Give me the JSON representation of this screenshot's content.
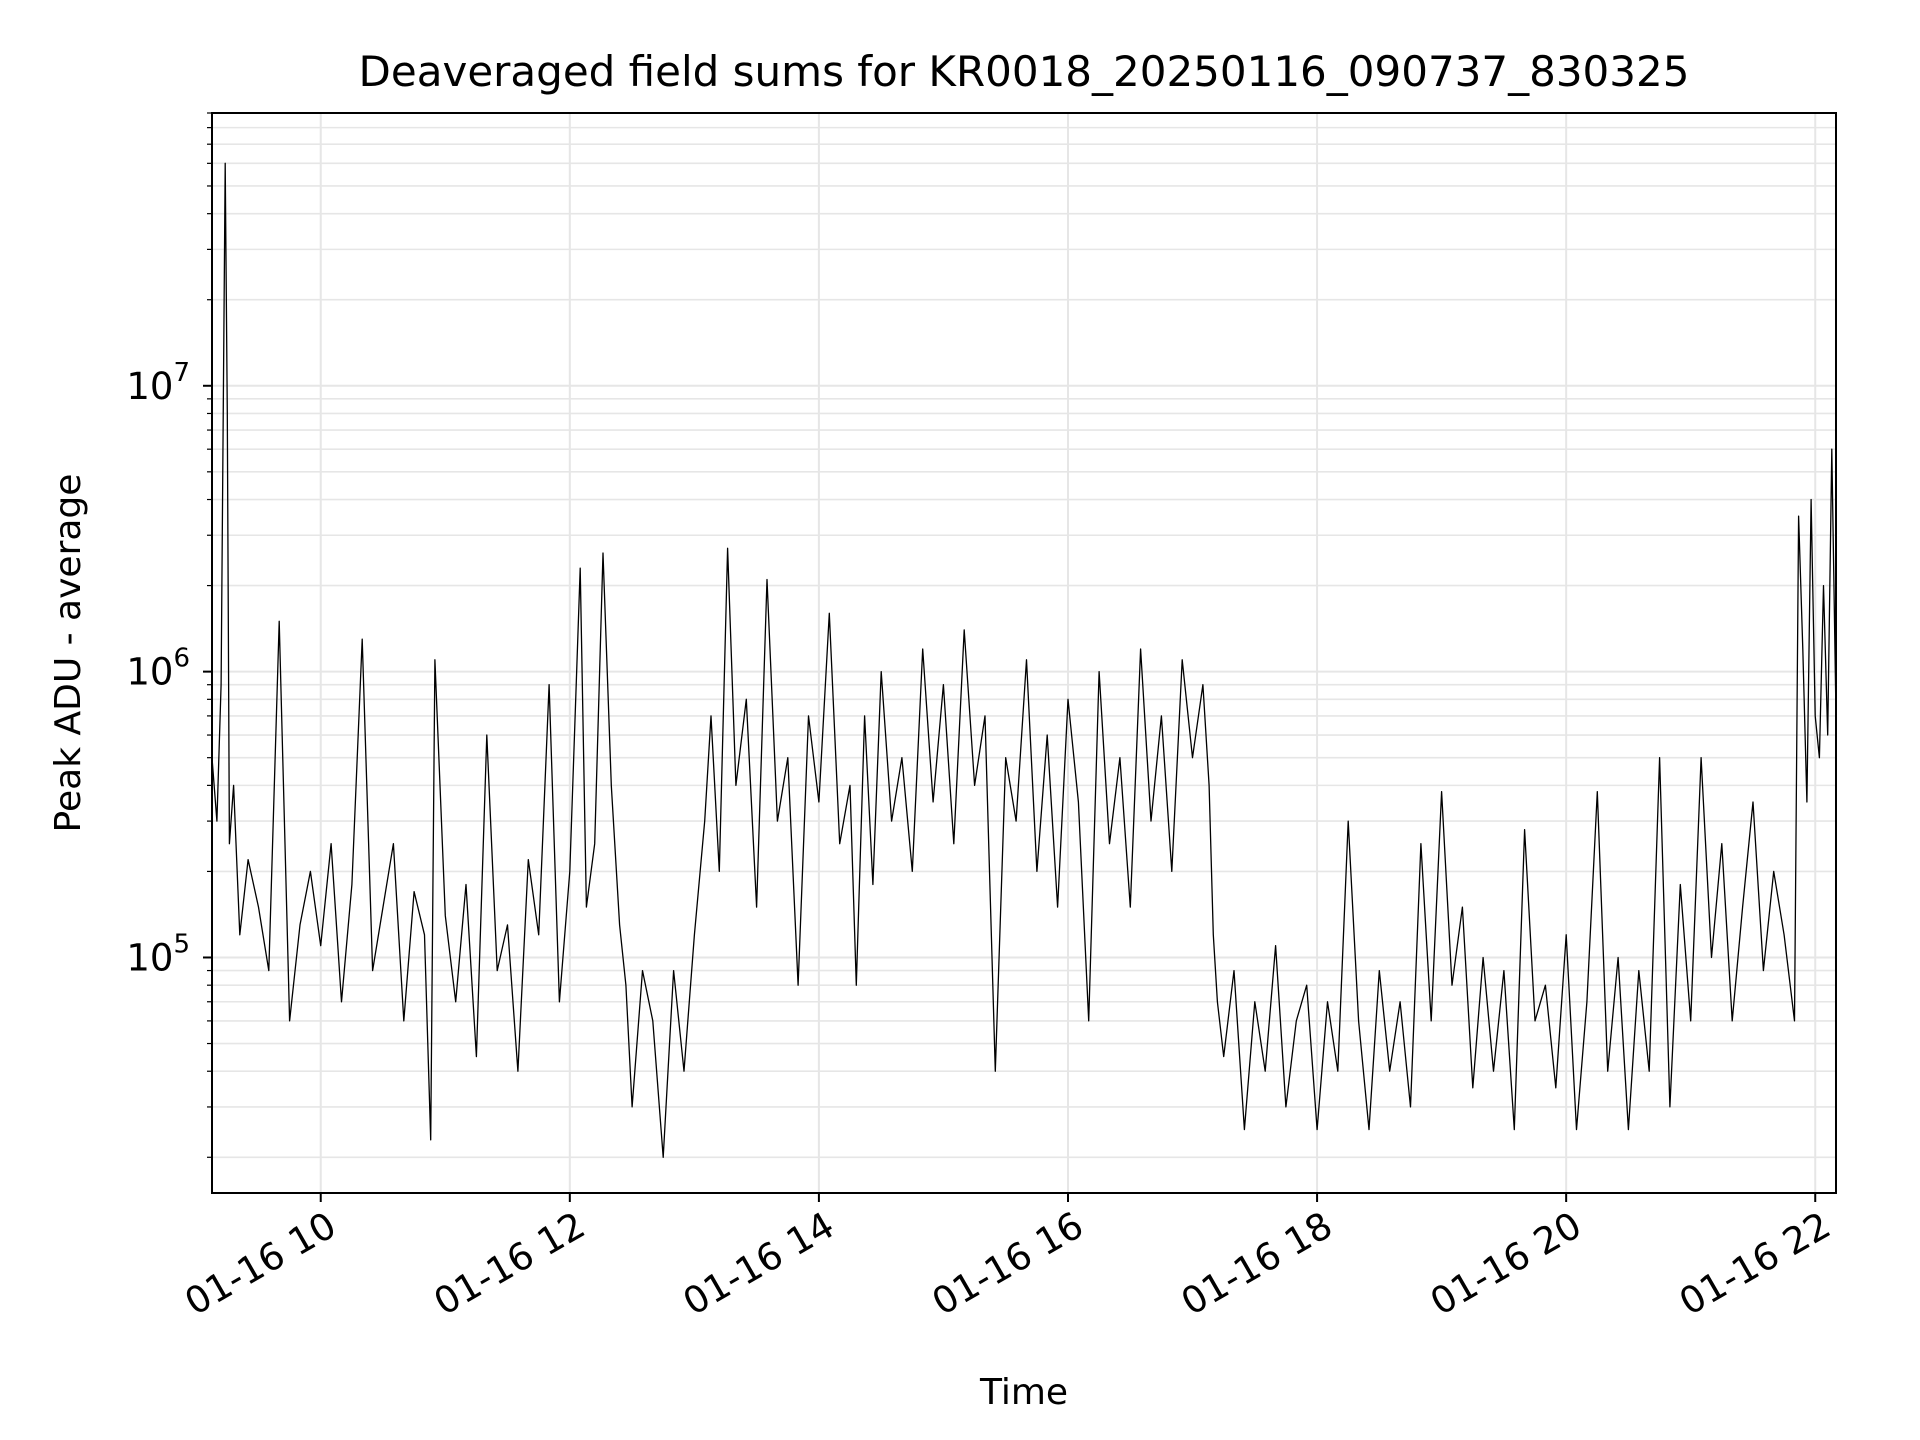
{
  "chart_data": {
    "type": "line",
    "title": "Deaveraged field sums for KR0018_20250116_090737_830325",
    "xlabel": "Time",
    "ylabel": "Peak ADU - average",
    "x_type": "datetime",
    "xlim": [
      "2025-01-16T09:07:37",
      "2025-01-16T22:10:00"
    ],
    "yscale": "log",
    "ylim": [
      15000,
      90000000
    ],
    "grid": true,
    "line_color": "#000000",
    "grid_color": "#e6e6e6",
    "x_ticks": [
      {
        "value": "2025-01-16T10:00:00",
        "label": "01-16 10"
      },
      {
        "value": "2025-01-16T12:00:00",
        "label": "01-16 12"
      },
      {
        "value": "2025-01-16T14:00:00",
        "label": "01-16 14"
      },
      {
        "value": "2025-01-16T16:00:00",
        "label": "01-16 16"
      },
      {
        "value": "2025-01-16T18:00:00",
        "label": "01-16 18"
      },
      {
        "value": "2025-01-16T20:00:00",
        "label": "01-16 20"
      },
      {
        "value": "2025-01-16T22:00:00",
        "label": "01-16 22"
      }
    ],
    "y_ticks": [
      {
        "value": 100000,
        "base": "10",
        "exp": "5"
      },
      {
        "value": 1000000,
        "base": "10",
        "exp": "6"
      },
      {
        "value": 10000000,
        "base": "10",
        "exp": "7"
      }
    ],
    "series": [
      {
        "x": [
          "2025-01-16T09:07:37",
          "2025-01-16T09:10:00",
          "2025-01-16T09:12:00",
          "2025-01-16T09:14:00",
          "2025-01-16T09:15:00",
          "2025-01-16T09:16:00",
          "2025-01-16T09:18:00",
          "2025-01-16T09:21:00",
          "2025-01-16T09:25:00",
          "2025-01-16T09:30:00",
          "2025-01-16T09:35:00",
          "2025-01-16T09:40:00",
          "2025-01-16T09:45:00",
          "2025-01-16T09:50:00",
          "2025-01-16T09:55:00",
          "2025-01-16T10:00:00",
          "2025-01-16T10:05:00",
          "2025-01-16T10:10:00",
          "2025-01-16T10:15:00",
          "2025-01-16T10:20:00",
          "2025-01-16T10:25:00",
          "2025-01-16T10:30:00",
          "2025-01-16T10:35:00",
          "2025-01-16T10:40:00",
          "2025-01-16T10:45:00",
          "2025-01-16T10:50:00",
          "2025-01-16T10:53:00",
          "2025-01-16T10:55:00",
          "2025-01-16T11:00:00",
          "2025-01-16T11:05:00",
          "2025-01-16T11:10:00",
          "2025-01-16T11:15:00",
          "2025-01-16T11:20:00",
          "2025-01-16T11:25:00",
          "2025-01-16T11:30:00",
          "2025-01-16T11:35:00",
          "2025-01-16T11:40:00",
          "2025-01-16T11:45:00",
          "2025-01-16T11:50:00",
          "2025-01-16T11:55:00",
          "2025-01-16T12:00:00",
          "2025-01-16T12:05:00",
          "2025-01-16T12:08:00",
          "2025-01-16T12:12:00",
          "2025-01-16T12:16:00",
          "2025-01-16T12:20:00",
          "2025-01-16T12:24:00",
          "2025-01-16T12:27:00",
          "2025-01-16T12:30:00",
          "2025-01-16T12:35:00",
          "2025-01-16T12:40:00",
          "2025-01-16T12:45:00",
          "2025-01-16T12:50:00",
          "2025-01-16T12:55:00",
          "2025-01-16T13:00:00",
          "2025-01-16T13:05:00",
          "2025-01-16T13:08:00",
          "2025-01-16T13:12:00",
          "2025-01-16T13:16:00",
          "2025-01-16T13:20:00",
          "2025-01-16T13:25:00",
          "2025-01-16T13:30:00",
          "2025-01-16T13:35:00",
          "2025-01-16T13:40:00",
          "2025-01-16T13:45:00",
          "2025-01-16T13:50:00",
          "2025-01-16T13:55:00",
          "2025-01-16T14:00:00",
          "2025-01-16T14:05:00",
          "2025-01-16T14:10:00",
          "2025-01-16T14:15:00",
          "2025-01-16T14:18:00",
          "2025-01-16T14:22:00",
          "2025-01-16T14:26:00",
          "2025-01-16T14:30:00",
          "2025-01-16T14:35:00",
          "2025-01-16T14:40:00",
          "2025-01-16T14:45:00",
          "2025-01-16T14:50:00",
          "2025-01-16T14:55:00",
          "2025-01-16T15:00:00",
          "2025-01-16T15:05:00",
          "2025-01-16T15:10:00",
          "2025-01-16T15:15:00",
          "2025-01-16T15:20:00",
          "2025-01-16T15:25:00",
          "2025-01-16T15:30:00",
          "2025-01-16T15:35:00",
          "2025-01-16T15:40:00",
          "2025-01-16T15:45:00",
          "2025-01-16T15:50:00",
          "2025-01-16T15:55:00",
          "2025-01-16T16:00:00",
          "2025-01-16T16:05:00",
          "2025-01-16T16:10:00",
          "2025-01-16T16:15:00",
          "2025-01-16T16:20:00",
          "2025-01-16T16:25:00",
          "2025-01-16T16:30:00",
          "2025-01-16T16:35:00",
          "2025-01-16T16:40:00",
          "2025-01-16T16:45:00",
          "2025-01-16T16:50:00",
          "2025-01-16T16:55:00",
          "2025-01-16T17:00:00",
          "2025-01-16T17:05:00",
          "2025-01-16T17:08:00",
          "2025-01-16T17:10:00",
          "2025-01-16T17:12:00",
          "2025-01-16T17:15:00",
          "2025-01-16T17:20:00",
          "2025-01-16T17:25:00",
          "2025-01-16T17:30:00",
          "2025-01-16T17:35:00",
          "2025-01-16T17:40:00",
          "2025-01-16T17:45:00",
          "2025-01-16T17:50:00",
          "2025-01-16T17:55:00",
          "2025-01-16T18:00:00",
          "2025-01-16T18:05:00",
          "2025-01-16T18:10:00",
          "2025-01-16T18:15:00",
          "2025-01-16T18:20:00",
          "2025-01-16T18:25:00",
          "2025-01-16T18:30:00",
          "2025-01-16T18:35:00",
          "2025-01-16T18:40:00",
          "2025-01-16T18:45:00",
          "2025-01-16T18:50:00",
          "2025-01-16T18:55:00",
          "2025-01-16T19:00:00",
          "2025-01-16T19:05:00",
          "2025-01-16T19:10:00",
          "2025-01-16T19:15:00",
          "2025-01-16T19:20:00",
          "2025-01-16T19:25:00",
          "2025-01-16T19:30:00",
          "2025-01-16T19:35:00",
          "2025-01-16T19:40:00",
          "2025-01-16T19:45:00",
          "2025-01-16T19:50:00",
          "2025-01-16T19:55:00",
          "2025-01-16T20:00:00",
          "2025-01-16T20:05:00",
          "2025-01-16T20:10:00",
          "2025-01-16T20:15:00",
          "2025-01-16T20:20:00",
          "2025-01-16T20:25:00",
          "2025-01-16T20:30:00",
          "2025-01-16T20:35:00",
          "2025-01-16T20:40:00",
          "2025-01-16T20:45:00",
          "2025-01-16T20:50:00",
          "2025-01-16T20:55:00",
          "2025-01-16T21:00:00",
          "2025-01-16T21:05:00",
          "2025-01-16T21:10:00",
          "2025-01-16T21:15:00",
          "2025-01-16T21:20:00",
          "2025-01-16T21:25:00",
          "2025-01-16T21:30:00",
          "2025-01-16T21:35:00",
          "2025-01-16T21:40:00",
          "2025-01-16T21:45:00",
          "2025-01-16T21:50:00",
          "2025-01-16T21:52:00",
          "2025-01-16T21:54:00",
          "2025-01-16T21:56:00",
          "2025-01-16T21:58:00",
          "2025-01-16T22:00:00",
          "2025-01-16T22:02:00",
          "2025-01-16T22:04:00",
          "2025-01-16T22:06:00",
          "2025-01-16T22:08:00",
          "2025-01-16T22:10:00"
        ],
        "y": [
          500000,
          300000,
          900000,
          60000000,
          8000000,
          250000,
          400000,
          120000,
          220000,
          150000,
          90000,
          1500000,
          60000,
          130000,
          200000,
          110000,
          250000,
          70000,
          180000,
          1300000,
          90000,
          150000,
          250000,
          60000,
          170000,
          120000,
          23000,
          1100000,
          140000,
          70000,
          180000,
          45000,
          600000,
          90000,
          130000,
          40000,
          220000,
          120000,
          900000,
          70000,
          200000,
          2300000,
          150000,
          250000,
          2600000,
          400000,
          130000,
          80000,
          30000,
          90000,
          60000,
          20000,
          90000,
          40000,
          120000,
          300000,
          700000,
          200000,
          2700000,
          400000,
          800000,
          150000,
          2100000,
          300000,
          500000,
          80000,
          700000,
          350000,
          1600000,
          250000,
          400000,
          80000,
          700000,
          180000,
          1000000,
          300000,
          500000,
          200000,
          1200000,
          350000,
          900000,
          250000,
          1400000,
          400000,
          700000,
          40000,
          500000,
          300000,
          1100000,
          200000,
          600000,
          150000,
          800000,
          350000,
          60000,
          1000000,
          250000,
          500000,
          150000,
          1200000,
          300000,
          700000,
          200000,
          1100000,
          500000,
          900000,
          400000,
          120000,
          70000,
          45000,
          90000,
          25000,
          70000,
          40000,
          110000,
          30000,
          60000,
          80000,
          25000,
          70000,
          40000,
          300000,
          60000,
          25000,
          90000,
          40000,
          70000,
          30000,
          250000,
          60000,
          380000,
          80000,
          150000,
          35000,
          100000,
          40000,
          90000,
          25000,
          280000,
          60000,
          80000,
          35000,
          120000,
          25000,
          70000,
          380000,
          40000,
          100000,
          25000,
          90000,
          40000,
          500000,
          30000,
          180000,
          60000,
          500000,
          100000,
          250000,
          60000,
          150000,
          350000,
          90000,
          200000,
          120000,
          60000,
          3500000,
          1200000,
          350000,
          4000000,
          700000,
          500000,
          2000000,
          600000,
          6000000,
          700000
        ]
      }
    ]
  }
}
